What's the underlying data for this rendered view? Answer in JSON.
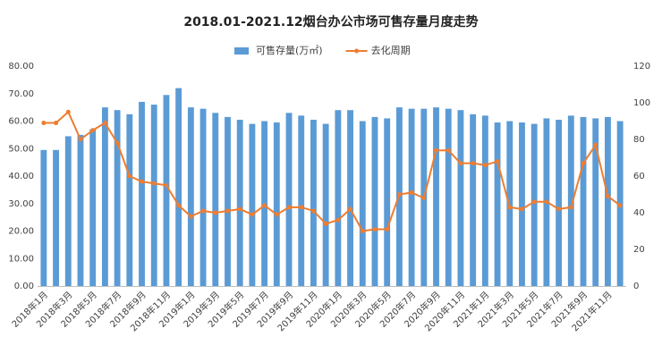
{
  "chart_data": {
    "type": "bar_line",
    "title": "2018.01-2021.12烟台办公市场可售存量月度走势",
    "categories": [
      "2018年1月",
      null,
      "2018年3月",
      null,
      "2018年5月",
      null,
      "2018年7月",
      null,
      "2018年9月",
      null,
      "2018年11月",
      null,
      "2019年1月",
      null,
      "2019年3月",
      null,
      "2019年5月",
      null,
      "2019年7月",
      null,
      "2019年9月",
      null,
      "2019年11月",
      null,
      "2020年1月",
      null,
      "2020年3月",
      null,
      "2020年5月",
      null,
      "2020年7月",
      null,
      "2020年9月",
      null,
      "2020年11月",
      null,
      "2021年1月",
      null,
      "2021年3月",
      null,
      "2021年5月",
      null,
      "2021年7月",
      null,
      "2021年9月",
      null,
      "2021年11月",
      null
    ],
    "series": [
      {
        "name": "可售存量(万㎡)",
        "color": "#5b9bd5",
        "type": "bar",
        "axis": "y",
        "values": [
          49.5,
          49.5,
          54.5,
          55,
          57,
          65,
          64,
          62.5,
          67,
          66,
          69.5,
          72,
          65,
          64.5,
          63,
          61.5,
          60.5,
          59,
          60,
          59.5,
          63,
          62,
          60.5,
          59,
          64,
          64,
          60,
          61.5,
          61,
          65,
          64.5,
          64.5,
          65,
          64.5,
          64,
          62.5,
          62,
          59.5,
          60,
          59.5,
          59,
          61,
          60.5,
          62,
          61.5,
          61,
          61.5,
          60
        ]
      },
      {
        "name": "去化周期",
        "color": "#ed7d31",
        "type": "line",
        "axis": "y2",
        "values": [
          89,
          89,
          95,
          80,
          85,
          89,
          78,
          60,
          57,
          56,
          55,
          44,
          38,
          41,
          40,
          41,
          42,
          39,
          44,
          39,
          43,
          43,
          41,
          34,
          36,
          42,
          30,
          31,
          31,
          50,
          51,
          48,
          74,
          74,
          67,
          67,
          66,
          68,
          43,
          42,
          46,
          46,
          42,
          43,
          67,
          77,
          49,
          44
        ]
      }
    ],
    "ylim": [
      0,
      80
    ],
    "yticks": [
      {
        "value": 0,
        "label": "0.00"
      },
      {
        "value": 10,
        "label": "10.00"
      },
      {
        "value": 20,
        "label": "20.00"
      },
      {
        "value": 30,
        "label": "30.00"
      },
      {
        "value": 40,
        "label": "40.00"
      },
      {
        "value": 50,
        "label": "50.00"
      },
      {
        "value": 60,
        "label": "60.00"
      },
      {
        "value": 70,
        "label": "70.00"
      },
      {
        "value": 80,
        "label": "80.00"
      }
    ],
    "y2lim": [
      0,
      120
    ],
    "y2ticks": [
      0,
      20,
      40,
      60,
      80,
      100,
      120
    ],
    "grid": false
  }
}
